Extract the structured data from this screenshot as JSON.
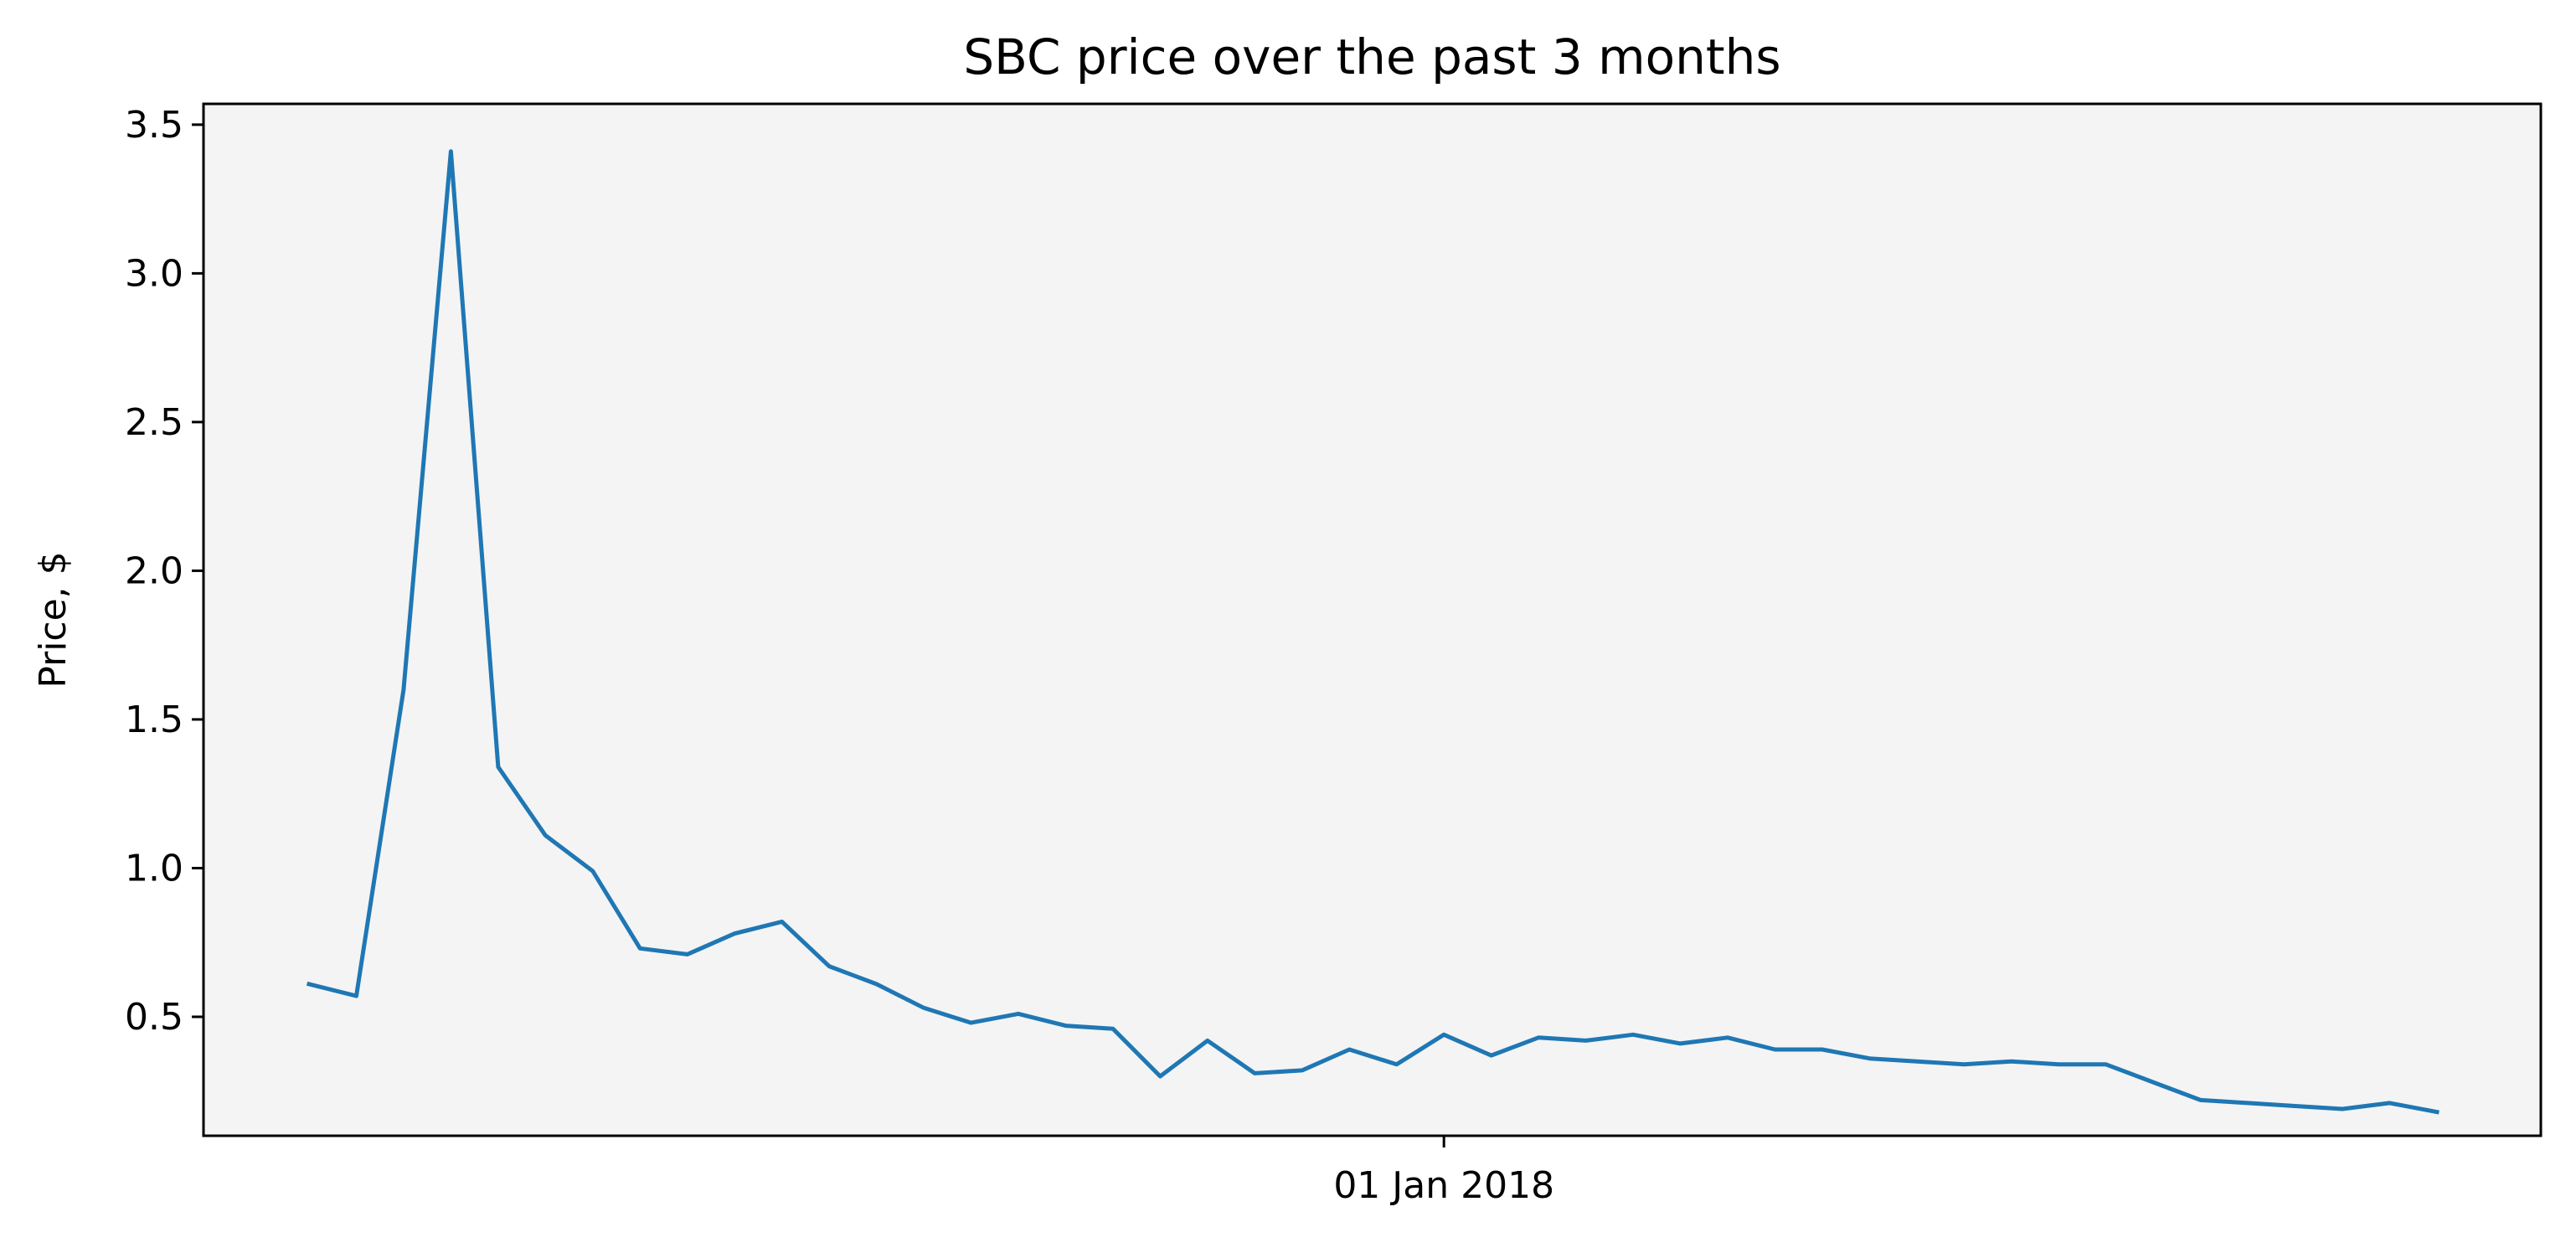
{
  "chart_data": {
    "type": "line",
    "title": "SBC price over the past 3 months",
    "xlabel": "",
    "ylabel": "Price, $",
    "x_ticks": [
      "01 Jan 2018"
    ],
    "y_ticks": [
      "0.5",
      "1.0",
      "1.5",
      "2.0",
      "2.5",
      "3.0",
      "3.5"
    ],
    "ylim": [
      0.1,
      3.57
    ],
    "grid": false,
    "legend": "none",
    "colors": {
      "plot_bg": "#f4f4f4",
      "line": "#1f77b4",
      "axes": "#000000"
    },
    "series": [
      {
        "values": [
          0.61,
          0.57,
          1.6,
          3.41,
          1.34,
          1.11,
          0.99,
          0.73,
          0.71,
          0.78,
          0.82,
          0.67,
          0.61,
          0.53,
          0.48,
          0.51,
          0.47,
          0.46,
          0.3,
          0.42,
          0.31,
          0.32,
          0.39,
          0.34,
          0.44,
          0.37,
          0.43,
          0.42,
          0.44,
          0.41,
          0.43,
          0.39,
          0.39,
          0.36,
          0.35,
          0.34,
          0.35,
          0.34,
          0.34,
          0.28,
          0.22,
          0.21,
          0.2,
          0.19,
          0.21,
          0.18
        ]
      }
    ]
  }
}
